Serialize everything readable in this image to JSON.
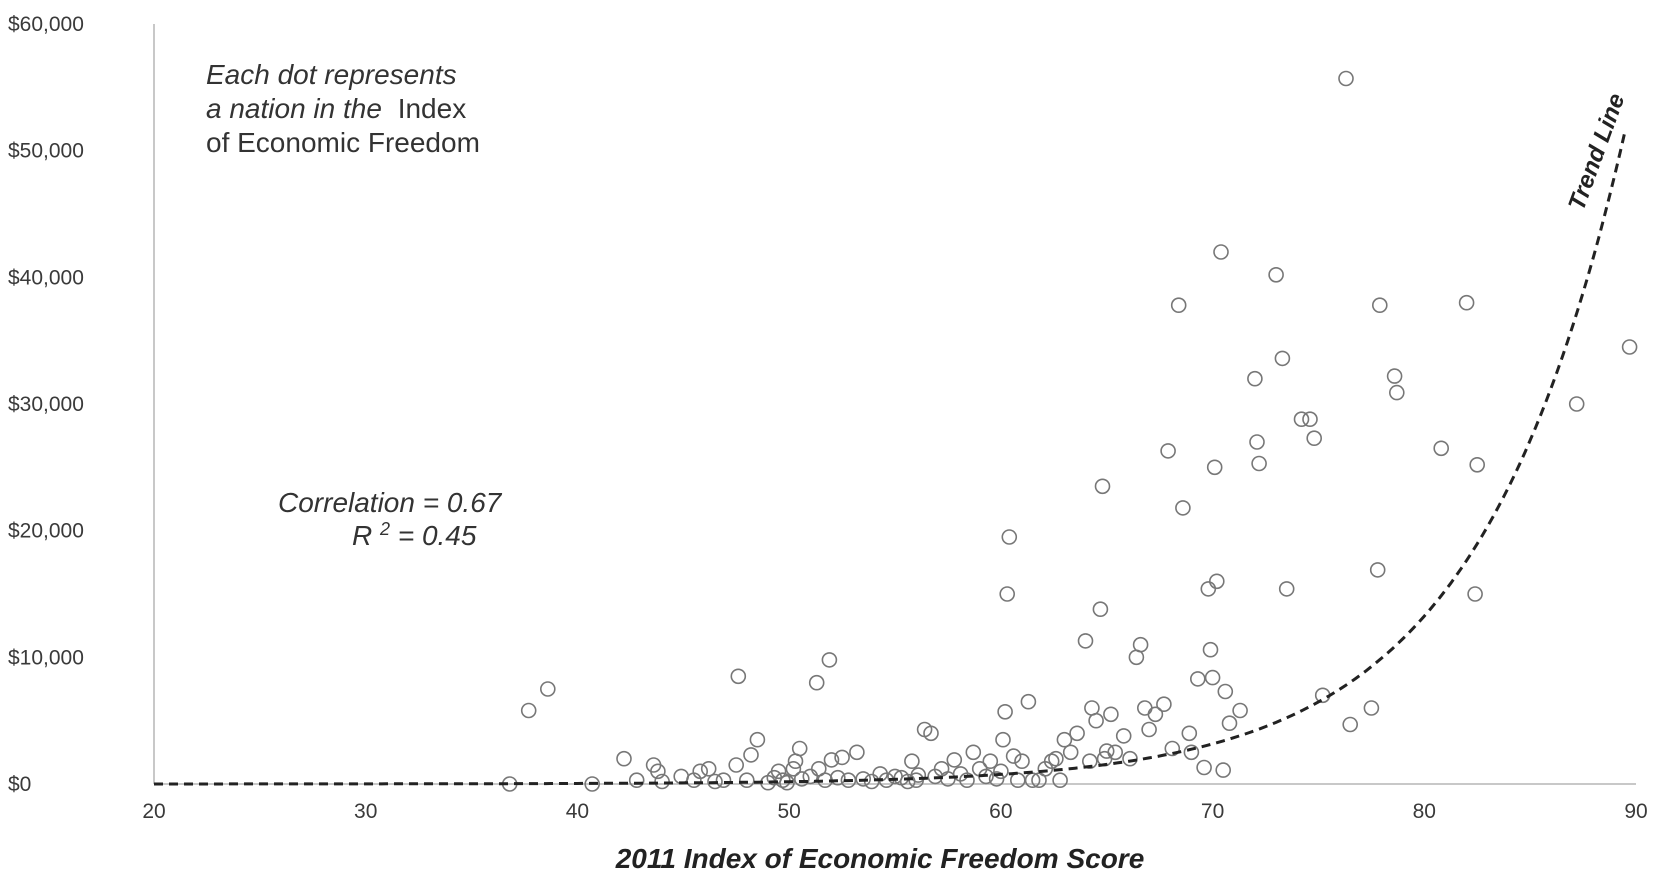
{
  "chart_data": {
    "type": "scatter",
    "title": "",
    "xlabel": "2011 Index of Economic Freedom Score",
    "ylabel": "",
    "xlim": [
      20,
      90
    ],
    "ylim": [
      0,
      60000
    ],
    "x_ticks": [
      20,
      30,
      40,
      50,
      60,
      70,
      80,
      90
    ],
    "y_ticks": [
      0,
      10000,
      20000,
      30000,
      40000,
      50000,
      60000
    ],
    "x_tick_labels": [
      "20",
      "30",
      "40",
      "50",
      "60",
      "70",
      "80",
      "90"
    ],
    "y_tick_labels": [
      "$0",
      "$10,000",
      "$20,000",
      "$30,000",
      "$40,000",
      "$50,000",
      "$60,000"
    ],
    "grid": false,
    "annotations": {
      "note_line1": "Each dot represents",
      "note_line2_italic": "a nation in the",
      "note_line2_plain": "Index",
      "note_line3": "of Economic Freedom",
      "correlation": "Correlation = 0.67",
      "r2_prefix": "R",
      "r2_sup": "2",
      "r2_suffix": " = 0.45",
      "trend_label": "Trend Line"
    },
    "trend_line": {
      "type": "exponential",
      "a": 2.46,
      "b": 0.1432
    },
    "points": [
      [
        37.7,
        5800
      ],
      [
        38.6,
        7500
      ],
      [
        36.8,
        0
      ],
      [
        40.7,
        0
      ],
      [
        42.2,
        2000
      ],
      [
        42.8,
        300
      ],
      [
        43.6,
        1500
      ],
      [
        43.8,
        1000
      ],
      [
        44.0,
        200
      ],
      [
        44.9,
        600
      ],
      [
        45.5,
        300
      ],
      [
        45.8,
        1000
      ],
      [
        46.2,
        1200
      ],
      [
        46.5,
        200
      ],
      [
        46.9,
        300
      ],
      [
        47.5,
        1500
      ],
      [
        47.6,
        8500
      ],
      [
        48.0,
        300
      ],
      [
        48.2,
        2300
      ],
      [
        48.5,
        3500
      ],
      [
        49.0,
        100
      ],
      [
        49.3,
        500
      ],
      [
        49.5,
        1000
      ],
      [
        49.7,
        300
      ],
      [
        49.9,
        100
      ],
      [
        50.2,
        1200
      ],
      [
        50.3,
        1800
      ],
      [
        50.5,
        2800
      ],
      [
        50.6,
        400
      ],
      [
        51.0,
        600
      ],
      [
        51.3,
        8000
      ],
      [
        51.4,
        1200
      ],
      [
        51.7,
        300
      ],
      [
        51.9,
        9800
      ],
      [
        52.0,
        1900
      ],
      [
        52.3,
        500
      ],
      [
        52.5,
        2100
      ],
      [
        52.8,
        300
      ],
      [
        53.2,
        2500
      ],
      [
        53.5,
        400
      ],
      [
        53.9,
        200
      ],
      [
        54.3,
        800
      ],
      [
        54.6,
        300
      ],
      [
        55.0,
        600
      ],
      [
        55.3,
        500
      ],
      [
        55.6,
        200
      ],
      [
        55.8,
        1800
      ],
      [
        56.0,
        300
      ],
      [
        56.1,
        700
      ],
      [
        56.4,
        4300
      ],
      [
        56.7,
        4000
      ],
      [
        56.9,
        600
      ],
      [
        57.2,
        1200
      ],
      [
        57.5,
        400
      ],
      [
        57.8,
        1900
      ],
      [
        58.1,
        800
      ],
      [
        58.4,
        300
      ],
      [
        58.7,
        2500
      ],
      [
        59.0,
        1200
      ],
      [
        59.3,
        600
      ],
      [
        59.5,
        1800
      ],
      [
        59.8,
        400
      ],
      [
        60.0,
        1000
      ],
      [
        60.1,
        3500
      ],
      [
        60.2,
        5700
      ],
      [
        60.3,
        15000
      ],
      [
        60.4,
        19500
      ],
      [
        60.6,
        2200
      ],
      [
        60.8,
        300
      ],
      [
        61.0,
        1800
      ],
      [
        61.3,
        6500
      ],
      [
        61.5,
        300
      ],
      [
        61.8,
        300
      ],
      [
        62.1,
        1200
      ],
      [
        62.4,
        1800
      ],
      [
        62.6,
        2000
      ],
      [
        62.8,
        300
      ],
      [
        63.0,
        3500
      ],
      [
        63.3,
        2500
      ],
      [
        63.6,
        4000
      ],
      [
        64.0,
        11300
      ],
      [
        64.2,
        1800
      ],
      [
        64.3,
        6000
      ],
      [
        64.5,
        5000
      ],
      [
        64.7,
        13800
      ],
      [
        64.8,
        23500
      ],
      [
        64.9,
        2000
      ],
      [
        65.0,
        2600
      ],
      [
        65.2,
        5500
      ],
      [
        65.4,
        2500
      ],
      [
        65.8,
        3800
      ],
      [
        66.1,
        2000
      ],
      [
        66.4,
        10000
      ],
      [
        66.6,
        11000
      ],
      [
        66.8,
        6000
      ],
      [
        67.0,
        4300
      ],
      [
        67.3,
        5500
      ],
      [
        67.7,
        6300
      ],
      [
        67.9,
        26300
      ],
      [
        68.1,
        2800
      ],
      [
        68.4,
        37800
      ],
      [
        68.6,
        21800
      ],
      [
        68.9,
        4000
      ],
      [
        69.0,
        2500
      ],
      [
        69.3,
        8300
      ],
      [
        69.6,
        1300
      ],
      [
        69.8,
        15400
      ],
      [
        69.9,
        10600
      ],
      [
        70.0,
        8400
      ],
      [
        70.1,
        25000
      ],
      [
        70.2,
        16000
      ],
      [
        70.4,
        42000
      ],
      [
        70.5,
        1100
      ],
      [
        70.6,
        7300
      ],
      [
        70.8,
        4800
      ],
      [
        71.3,
        5800
      ],
      [
        72.0,
        32000
      ],
      [
        72.1,
        27000
      ],
      [
        72.2,
        25300
      ],
      [
        73.0,
        40200
      ],
      [
        73.3,
        33600
      ],
      [
        73.5,
        15400
      ],
      [
        74.2,
        28800
      ],
      [
        74.6,
        28800
      ],
      [
        74.8,
        27300
      ],
      [
        75.2,
        7000
      ],
      [
        76.3,
        55700
      ],
      [
        76.5,
        4700
      ],
      [
        77.5,
        6000
      ],
      [
        77.8,
        16900
      ],
      [
        77.9,
        37800
      ],
      [
        78.6,
        32200
      ],
      [
        78.7,
        30900
      ],
      [
        80.8,
        26500
      ],
      [
        82.0,
        38000
      ],
      [
        82.4,
        15000
      ],
      [
        82.5,
        25200
      ],
      [
        87.2,
        30000
      ],
      [
        89.7,
        34500
      ]
    ]
  }
}
